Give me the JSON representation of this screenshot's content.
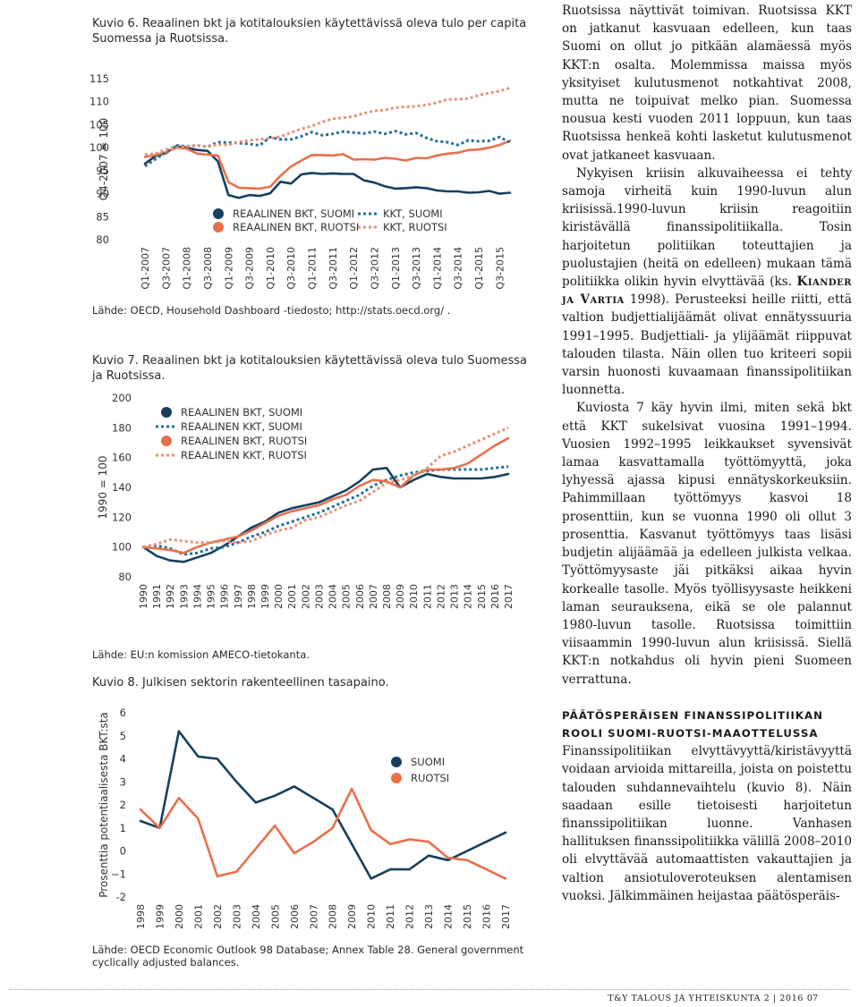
{
  "figure6": {
    "caption": "Kuvio 6. Reaalinen bkt ja kotitalouksien käytettävissä oleva tulo per capita Suomessa ja Ruotsissa.",
    "source": "Lähde: OECD, Household Dashboard -tiedosto; http://stats.oecd.org/ .",
    "chart_data": {
      "type": "line",
      "ylabel": "Q4-2007 = 100",
      "ylim": [
        80,
        115
      ],
      "yticks": [
        "115",
        "110",
        "105",
        "100",
        "95",
        "90",
        "85",
        "80"
      ],
      "x": [
        "Q1-2007",
        "Q2-2007",
        "Q3-2007",
        "Q4-2007",
        "Q1-2008",
        "Q2-2008",
        "Q3-2008",
        "Q4-2008",
        "Q1-2009",
        "Q2-2009",
        "Q3-2009",
        "Q4-2009",
        "Q1-2010",
        "Q2-2010",
        "Q3-2010",
        "Q4-2010",
        "Q1-2011",
        "Q2-2011",
        "Q3-2011",
        "Q4-2011",
        "Q1-2012",
        "Q2-2012",
        "Q3-2012",
        "Q4-2012",
        "Q1-2013",
        "Q2-2013",
        "Q3-2013",
        "Q4-2013",
        "Q1-2014",
        "Q2-2014",
        "Q3-2014",
        "Q4-2014",
        "Q1-2015",
        "Q2-2015",
        "Q3-2015",
        "Q4-2015"
      ],
      "xtick_labels": [
        "Q1-2007",
        "Q3-2007",
        "Q1-2008",
        "Q3-2008",
        "Q1-2009",
        "Q3-2009",
        "Q1-2010",
        "Q3-2010",
        "Q1-2011",
        "Q3-2011",
        "Q1-2012",
        "Q3-2012",
        "Q1-2013",
        "Q3-2013",
        "Q1-2014",
        "Q3-2014",
        "Q1-2015",
        "Q3-2015"
      ],
      "series": [
        {
          "name": "REAALINEN BKT, SUOMI",
          "color": "#17405e",
          "style": "solid",
          "values": [
            96.5,
            98.2,
            98.8,
            100.3,
            100.0,
            99.5,
            99.3,
            97.0,
            89.7,
            89.1,
            89.7,
            89.5,
            90.1,
            92.6,
            92.2,
            94.2,
            94.5,
            94.3,
            94.4,
            94.3,
            94.3,
            92.9,
            92.4,
            91.6,
            91.1,
            91.2,
            91.4,
            91.2,
            90.7,
            90.5,
            90.5,
            90.2,
            90.3,
            90.6,
            90.0,
            90.2
          ]
        },
        {
          "name": "REAALINEN BKT, RUOTSI",
          "color": "#e8704b",
          "style": "solid",
          "values": [
            98.0,
            98.4,
            99.0,
            100.0,
            99.8,
            98.7,
            98.5,
            98.3,
            92.5,
            91.3,
            91.2,
            91.1,
            91.5,
            93.9,
            95.9,
            97.2,
            98.4,
            98.4,
            98.3,
            98.6,
            97.4,
            97.5,
            97.4,
            97.8,
            97.6,
            97.2,
            97.8,
            97.7,
            98.3,
            98.7,
            98.9,
            99.5,
            99.6,
            100.0,
            100.6,
            101.5
          ]
        },
        {
          "name": "KKT, SUOMI",
          "color": "#1f6f9e",
          "style": "dotted",
          "values": [
            96.0,
            97.5,
            99.0,
            100.5,
            100.3,
            100.5,
            100.2,
            101.2,
            101.1,
            101.0,
            100.8,
            100.5,
            102.3,
            101.8,
            101.8,
            102.5,
            103.4,
            102.7,
            103.0,
            103.5,
            103.3,
            103.1,
            103.5,
            103.0,
            103.6,
            102.9,
            103.2,
            102.1,
            101.4,
            101.2,
            100.6,
            101.6,
            101.4,
            101.5,
            102.3,
            101.2
          ]
        },
        {
          "name": "KKT, RUOTSI",
          "color": "#e8907a",
          "style": "dotted",
          "values": [
            98.5,
            98.7,
            99.6,
            100.0,
            100.3,
            100.5,
            100.2,
            100.7,
            100.6,
            101.3,
            101.6,
            101.8,
            102.0,
            102.4,
            103.3,
            104.1,
            104.7,
            105.6,
            106.3,
            106.5,
            106.8,
            107.5,
            108.0,
            108.2,
            108.7,
            108.9,
            109.0,
            109.3,
            109.8,
            110.5,
            110.5,
            110.7,
            111.4,
            111.9,
            112.3,
            113.0
          ]
        }
      ]
    }
  },
  "figure7": {
    "caption": "Kuvio 7. Reaalinen bkt ja kotitalouksien käytettävissä oleva tulo Suomessa ja Ruotsissa.",
    "source": "Lähde: EU:n komission AMECO-tietokanta.",
    "chart_data": {
      "type": "line",
      "ylabel": "1990 = 100",
      "ylim": [
        80,
        200
      ],
      "yticks": [
        "200",
        "180",
        "160",
        "140",
        "120",
        "100",
        "80"
      ],
      "x": [
        "1990",
        "1991",
        "1992",
        "1993",
        "1994",
        "1995",
        "1996",
        "1997",
        "1998",
        "1999",
        "2000",
        "2001",
        "2002",
        "2003",
        "2004",
        "2005",
        "2006",
        "2007",
        "2008",
        "2009",
        "2010",
        "2011",
        "2012",
        "2013",
        "2014",
        "2015",
        "2016",
        "2017"
      ],
      "series": [
        {
          "name": "REAALINEN BKT, SUOMI",
          "color": "#17405e",
          "style": "solid",
          "values": [
            100,
            94,
            91,
            90,
            93,
            96,
            101,
            107,
            113,
            117,
            123,
            126,
            128,
            130,
            134,
            138,
            144,
            152,
            153,
            140,
            145,
            149,
            147,
            146,
            146,
            146,
            147,
            149
          ]
        },
        {
          "name": "REAALINEN KKT, SUOMI",
          "color": "#1f6f9e",
          "style": "dotted",
          "values": [
            100,
            101,
            99,
            95,
            96,
            99,
            100,
            103,
            107,
            110,
            114,
            117,
            120,
            123,
            127,
            131,
            135,
            141,
            145,
            148,
            150,
            151,
            152,
            152,
            152,
            152,
            153,
            154
          ]
        },
        {
          "name": "REAALINEN BKT, RUOTSI",
          "color": "#e8704b",
          "style": "solid",
          "values": [
            100,
            99,
            98,
            96,
            100,
            103,
            105,
            107,
            111,
            116,
            121,
            124,
            126,
            128,
            132,
            135,
            141,
            145,
            144,
            140,
            148,
            152,
            152,
            153,
            156,
            162,
            168,
            173
          ]
        },
        {
          "name": "REAALINEN KKT, RUOTSI",
          "color": "#e8907a",
          "style": "dotted",
          "values": [
            100,
            102,
            105,
            104,
            103,
            103,
            104,
            103,
            104,
            108,
            111,
            113,
            118,
            120,
            124,
            128,
            131,
            137,
            143,
            145,
            148,
            153,
            161,
            164,
            168,
            172,
            176,
            180
          ]
        }
      ]
    }
  },
  "figure8": {
    "caption": "Kuvio 8. Julkisen sektorin rakenteellinen tasapaino.",
    "source": "Lähde: OECD Economic Outlook 98 Database; Annex Table 28. General government cyclically adjusted balances.",
    "chart_data": {
      "type": "line",
      "ylabel": "Prosenttia potentiaalisesta BKT:sta",
      "ylim": [
        -2,
        6
      ],
      "yticks": [
        "6",
        "5",
        "4",
        "3",
        "2",
        "1",
        "0",
        "−1",
        "-2"
      ],
      "x": [
        "1998",
        "1999",
        "2000",
        "2001",
        "2002",
        "2003",
        "2004",
        "2005",
        "2006",
        "2007",
        "2008",
        "2009",
        "2010",
        "2011",
        "2012",
        "2013",
        "2014",
        "2015",
        "2016",
        "2017"
      ],
      "series": [
        {
          "name": "SUOMI",
          "color": "#17405e",
          "style": "solid",
          "values": [
            1.3,
            1.0,
            5.2,
            4.1,
            4.0,
            3.0,
            2.1,
            2.4,
            2.8,
            2.3,
            1.8,
            0.3,
            -1.2,
            -0.8,
            -0.8,
            -0.2,
            -0.4,
            0.0,
            0.4,
            0.8
          ]
        },
        {
          "name": "RUOTSI",
          "color": "#e8704b",
          "style": "solid",
          "values": [
            1.8,
            1.0,
            2.3,
            1.4,
            -1.1,
            -0.9,
            0.1,
            1.1,
            -0.1,
            0.4,
            1.0,
            2.7,
            0.9,
            0.3,
            0.5,
            0.4,
            -0.3,
            -0.4,
            -0.8,
            -1.2
          ]
        }
      ]
    }
  },
  "article": {
    "p1": "Ruotsissa näyttivät toimivan. Ruotsissa KKT on jatkanut kasvuaan edelleen, kun taas Suomi on ollut jo pitkään alamäessä myös KKT:n osalta. Molemmissa maissa myös yksityiset kulutusmenot notkahtivat 2008, mutta ne toipuivat melko pian. Suomessa nousua kesti vuoden 2011 loppuun, kun taas Ruotsissa henkeä kohti lasketut kulutusmenot ovat jatkaneet kasvuaan.",
    "p2_a": "Nykyisen kriisin alkuvaiheessa ei tehty samoja virheitä kuin 1990-luvun alun kriisissä.1990-luvun kriisin reagoitiin kiristävällä finanssipolitiikalla. Tosin harjoitetun politiikan toteuttajien ja puolustajien (heitä on edelleen) mukaan tämä politiikka olikin hyvin elvyttävää (ks.",
    "p2_ref": "Kiander ja Vartia",
    "p2_b": "1998). Perusteeksi heille riitti, että valtion budjettialijäämät olivat ennätyssuuria 1991–1995. Budjettiali- ja ylijäämät riippuvat talouden tilasta. Näin ollen tuo kriteeri sopii varsin huonosti kuvaamaan finanssipolitiikan luonnetta.",
    "p3": "Kuviosta 7 käy hyvin ilmi, miten sekä bkt että KKT sukelsivat vuosina 1991–1994. Vuosien 1992–1995 leikkaukset syvensivät lamaa kasvattamalla työttömyyttä, joka lyhyessä ajassa kipusi ennätyskorkeuksiin. Pahimmillaan työttömyys kasvoi 18 prosenttiin, kun se vuonna 1990 oli ollut 3 prosenttia. Kasvanut työttömyys taas lisäsi budjetin alijäämää ja edelleen julkista velkaa. Työttömyysaste jäi pitkäksi aikaa hyvin korkealle tasolle. Myös työllisyysaste heikkeni laman seurauksena, eikä se ole palannut 1980-luvun tasolle. Ruotsissa toimittiin viisaammin 1990-luvun alun kriisissä. Siellä KKT:n notkahdus oli hyvin pieni Suomeen verrattuna.",
    "heading": "Päätösperäisen finanssipolitiikan rooli Suomi-Ruotsi-maaottelussa",
    "p4": "Finanssipolitiikan elvyttävyyttä/kiristävyyttä voidaan arvioida mittareilla, joista on poistettu talouden suhdannevaihtelu (kuvio 8). Näin saadaan esille tietoisesti harjoitetun finanssipolitiikan luonne. Vanhasen hallituksen finanssipolitiikka välillä 2008–2010 oli elvyttävää automaattisten vakauttajien ja valtion ansiotuloveroteuksen alentamisen vuoksi. Jälkimmäinen heijastaa päätösperäis-"
  },
  "footer": {
    "publication": "T&Y TALOUS JA YHTEISKUNTA 2 | 2016",
    "page": "07"
  }
}
